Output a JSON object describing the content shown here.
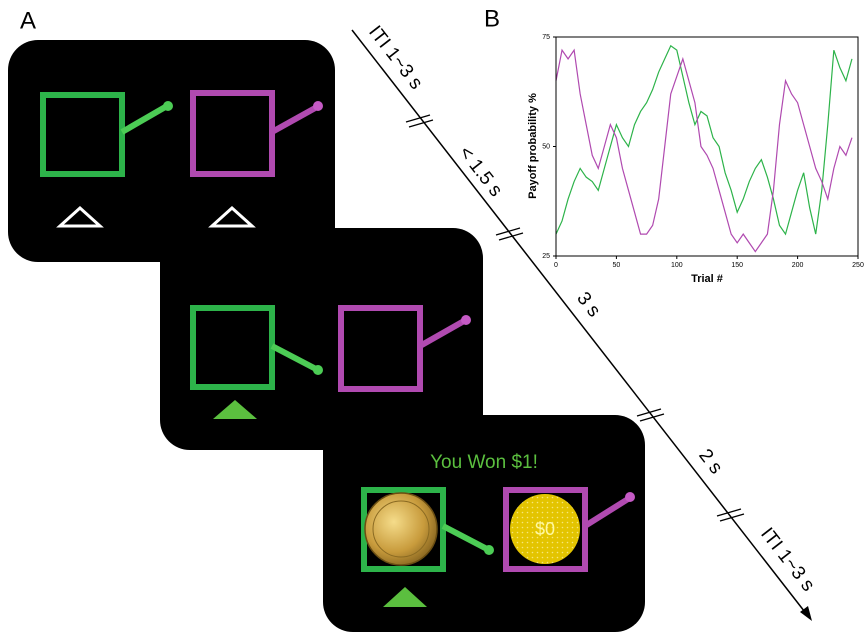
{
  "panel_labels": [
    "A",
    "B"
  ],
  "timeline": [
    "ITI 1~3 s",
    "< 1.5 s",
    "3 s",
    "2 s",
    "ITI 1~3 s"
  ],
  "feedback": {
    "message": "You Won $1!",
    "loss": "$0"
  },
  "chart_data": {
    "type": "line",
    "xlabel": "Trial #",
    "ylabel": "Payoff probability %",
    "x": [
      0,
      5,
      10,
      15,
      20,
      25,
      30,
      35,
      40,
      45,
      50,
      55,
      60,
      65,
      70,
      75,
      80,
      85,
      90,
      95,
      100,
      105,
      110,
      115,
      120,
      125,
      130,
      135,
      140,
      145,
      150,
      155,
      160,
      165,
      170,
      175,
      180,
      185,
      190,
      195,
      200,
      205,
      210,
      215,
      220,
      225,
      230,
      235,
      240,
      245
    ],
    "series": [
      {
        "color": "#2db34a",
        "values": [
          30,
          33,
          38,
          42,
          45,
          43,
          42,
          40,
          45,
          50,
          55,
          52,
          50,
          55,
          58,
          60,
          63,
          67,
          70,
          73,
          72,
          66,
          60,
          55,
          58,
          57,
          52,
          50,
          44,
          40,
          35,
          38,
          42,
          45,
          47,
          43,
          38,
          32,
          30,
          35,
          40,
          44,
          36,
          30,
          40,
          55,
          72,
          68,
          65,
          70
        ]
      },
      {
        "color": "#b04ab0",
        "values": [
          65,
          72,
          70,
          72,
          62,
          55,
          48,
          45,
          50,
          55,
          52,
          45,
          40,
          35,
          30,
          30,
          32,
          38,
          50,
          62,
          66,
          70,
          65,
          60,
          50,
          48,
          45,
          40,
          35,
          30,
          28,
          30,
          28,
          26,
          28,
          30,
          40,
          55,
          65,
          62,
          60,
          55,
          50,
          45,
          42,
          38,
          45,
          50,
          48,
          52
        ]
      }
    ],
    "xlim": [
      0,
      250
    ],
    "ylim": [
      25,
      75
    ],
    "xticks": [
      0,
      50,
      100,
      150,
      200,
      250
    ],
    "yticks": [
      25,
      50,
      75
    ]
  }
}
